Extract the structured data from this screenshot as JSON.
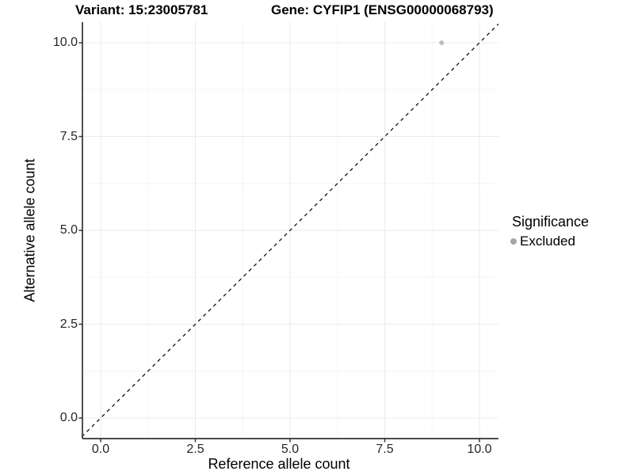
{
  "titles": {
    "variant": "Variant: 15:23005781",
    "gene": "Gene: CYFIP1 (ENSG00000068793)"
  },
  "chart_data": {
    "type": "scatter",
    "xlabel": "Reference allele count",
    "ylabel": "Alternative allele count",
    "xlim": [
      0,
      10
    ],
    "ylim": [
      0,
      10
    ],
    "x_ticks": [
      0,
      2.5,
      5,
      7.5,
      10
    ],
    "x_tick_labels": [
      "0.0",
      "2.5",
      "5.0",
      "7.5",
      "10.0"
    ],
    "y_ticks": [
      0,
      2.5,
      5,
      7.5,
      10
    ],
    "y_tick_labels": [
      "0.0",
      "2.5",
      "5.0",
      "7.5",
      "10.0"
    ],
    "x_minor_ticks": [
      1.25,
      3.75,
      6.25,
      8.75
    ],
    "y_minor_ticks": [
      1.25,
      3.75,
      6.25,
      8.75
    ],
    "grid": "major+minor",
    "points": [
      {
        "x": 9,
        "y": 10,
        "significance": "Excluded"
      }
    ],
    "identity_line": {
      "style": "dashed",
      "from": [
        -0.5,
        -0.5
      ],
      "to": [
        10.5,
        10.5
      ]
    },
    "legend": {
      "title": "Significance",
      "position": "right",
      "items": [
        {
          "label": "Excluded",
          "marker": "circle",
          "color": "#a6a6a6"
        }
      ]
    },
    "colors": {
      "point": "#bdbdbd",
      "grid_major": "#ebebeb",
      "grid_minor": "#f5f5f5",
      "axis_line": "#333333",
      "dashed_line": "#000000",
      "tick_text": "#262626"
    }
  }
}
